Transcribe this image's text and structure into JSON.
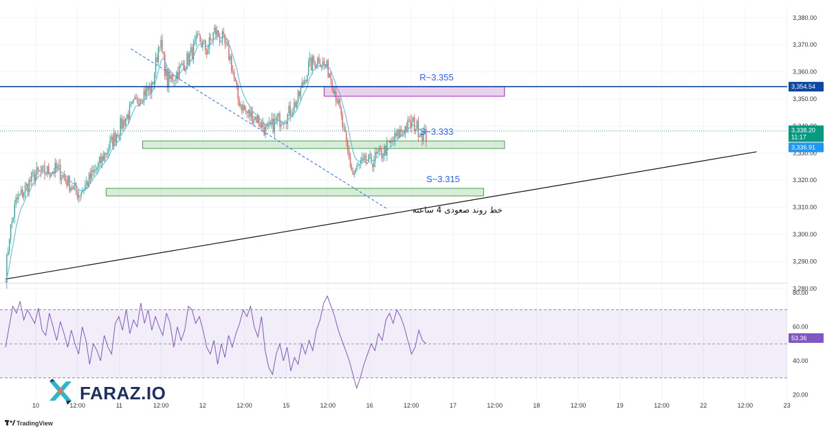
{
  "chart_data": [
    {
      "type": "candlestick",
      "instrument": "XAUUSD",
      "yaxis": {
        "range": [
          3283,
          3384
        ],
        "tick_labels": [
          "3,380.00",
          "3,370.00",
          "3,360.00",
          "3,350.00",
          "3,340.00",
          "3,330.00",
          "3,320.00",
          "3,310.00",
          "3,300.00",
          "3,290.00",
          "3,280.00"
        ],
        "ticks": [
          3380,
          3370,
          3360,
          3350,
          3340,
          3330,
          3320,
          3310,
          3300,
          3290,
          3280
        ]
      },
      "xaxis": {
        "tick_labels": [
          "10",
          "12:00",
          "11",
          "12:00",
          "12",
          "12:00",
          "15",
          "12:00",
          "16",
          "12:00",
          "17",
          "12:00",
          "18",
          "12:00",
          "19",
          "12:00",
          "22",
          "12:00",
          "23"
        ]
      },
      "anchors": [
        {
          "bar": 0,
          "price": 3285
        },
        {
          "bar": 3,
          "price": 3300
        },
        {
          "bar": 8,
          "price": 3312
        },
        {
          "bar": 14,
          "price": 3316
        },
        {
          "bar": 22,
          "price": 3322
        },
        {
          "bar": 30,
          "price": 3323
        },
        {
          "bar": 40,
          "price": 3324
        },
        {
          "bar": 50,
          "price": 3318
        },
        {
          "bar": 56,
          "price": 3315
        },
        {
          "bar": 64,
          "price": 3320
        },
        {
          "bar": 72,
          "price": 3326
        },
        {
          "bar": 80,
          "price": 3333
        },
        {
          "bar": 88,
          "price": 3340
        },
        {
          "bar": 96,
          "price": 3346
        },
        {
          "bar": 104,
          "price": 3352
        },
        {
          "bar": 112,
          "price": 3354
        },
        {
          "bar": 118,
          "price": 3372
        },
        {
          "bar": 124,
          "price": 3356
        },
        {
          "bar": 132,
          "price": 3360
        },
        {
          "bar": 140,
          "price": 3365
        },
        {
          "bar": 148,
          "price": 3372
        },
        {
          "bar": 154,
          "price": 3368
        },
        {
          "bar": 160,
          "price": 3375
        },
        {
          "bar": 166,
          "price": 3372
        },
        {
          "bar": 172,
          "price": 3365
        },
        {
          "bar": 178,
          "price": 3350
        },
        {
          "bar": 184,
          "price": 3345
        },
        {
          "bar": 192,
          "price": 3343
        },
        {
          "bar": 200,
          "price": 3338
        },
        {
          "bar": 208,
          "price": 3342
        },
        {
          "bar": 216,
          "price": 3344
        },
        {
          "bar": 224,
          "price": 3350
        },
        {
          "bar": 232,
          "price": 3362
        },
        {
          "bar": 240,
          "price": 3365
        },
        {
          "bar": 248,
          "price": 3360
        },
        {
          "bar": 254,
          "price": 3350
        },
        {
          "bar": 258,
          "price": 3340
        },
        {
          "bar": 262,
          "price": 3330
        },
        {
          "bar": 266,
          "price": 3322
        },
        {
          "bar": 272,
          "price": 3326
        },
        {
          "bar": 280,
          "price": 3327
        },
        {
          "bar": 288,
          "price": 3330
        },
        {
          "bar": 296,
          "price": 3334
        },
        {
          "bar": 304,
          "price": 3339
        },
        {
          "bar": 312,
          "price": 3341
        },
        {
          "bar": 318,
          "price": 3338
        },
        {
          "bar": 322,
          "price": 3336
        }
      ],
      "total_bars": 323,
      "bar_spacing_per_day": 124,
      "ema_period": 9,
      "current_price": {
        "value": 3338.2,
        "label": "3,338.20",
        "countdown": "11:17"
      },
      "levels": [
        {
          "value": 3354.54,
          "label": "3,354.54",
          "kind": "horizontal",
          "color": "#0d47a1"
        },
        {
          "value": 3336.91,
          "label": "3,336.91",
          "kind": "tag",
          "color": "#2196f3"
        }
      ],
      "zones": [
        {
          "label": "R~3.355",
          "kind": "resistance",
          "top": 3354.5,
          "bottom": 3351.0,
          "from_bar": 244,
          "to_bar": 382,
          "label_x_bar": 330
        },
        {
          "label": "S~3.333",
          "kind": "support",
          "top": 3334.5,
          "bottom": 3331.7,
          "from_bar": 105,
          "to_bar": 382,
          "label_x_bar": 330
        },
        {
          "label": "S~3.315",
          "kind": "support",
          "top": 3317.0,
          "bottom": 3314.2,
          "from_bar": 77,
          "to_bar": 366,
          "label_x_bar": 335
        }
      ],
      "trendlines": [
        {
          "name": "4h-uptrend",
          "from": {
            "bar": 0,
            "price": 3283.5
          },
          "to": {
            "bar": 575,
            "price": 3330.5
          },
          "color": "#111111",
          "style": "solid"
        },
        {
          "name": "falling-dashed",
          "from": {
            "bar": 96,
            "price": 3368.5
          },
          "to": {
            "bar": 292,
            "price": 3309.5
          },
          "color": "#2962ff",
          "style": "dashed"
        }
      ],
      "annotation": {
        "text": "خط روند صعودی 4 ساعته",
        "bar": 346,
        "price": 3308
      }
    },
    {
      "type": "line",
      "indicator": "RSI",
      "series": [
        {
          "values": [
            48,
            60,
            72,
            68,
            75,
            64,
            70,
            66,
            62,
            71,
            58,
            55,
            68,
            60,
            52,
            63,
            56,
            48,
            58,
            50,
            44,
            60,
            52,
            38,
            50,
            46,
            40,
            55,
            48,
            44,
            62,
            66,
            58,
            70,
            56,
            64,
            60,
            74,
            62,
            70,
            58,
            66,
            60,
            55,
            68,
            62,
            48,
            60,
            52,
            58,
            72,
            70,
            62,
            66,
            58,
            48,
            44,
            52,
            38,
            50,
            42,
            55,
            48,
            56,
            62,
            70,
            66,
            72,
            60,
            54,
            66,
            46,
            36,
            32,
            44,
            50,
            40,
            48,
            34,
            42,
            38,
            50,
            44,
            52,
            46,
            58,
            64,
            74,
            78,
            72,
            66,
            58,
            52,
            46,
            40,
            32,
            24,
            30,
            38,
            44,
            50,
            46,
            56,
            52,
            64,
            68,
            62,
            70,
            66,
            60,
            52,
            44,
            48,
            58,
            52,
            50
          ]
        }
      ],
      "yaxis": {
        "range": [
          17,
          84
        ],
        "tick_labels": [
          "80.00",
          "60.00",
          "40.00",
          "20.00"
        ],
        "ticks": [
          80,
          60,
          40,
          20
        ]
      },
      "band": [
        30,
        70
      ],
      "midline": 50,
      "current_value": {
        "value": 53.36,
        "label": "53.36"
      }
    }
  ],
  "branding": {
    "logo_text": "FARAZ.IO",
    "tradingview_text": "TradingView"
  },
  "colors": {
    "up": "#26a69a",
    "down": "#ef5350",
    "ema": "#4cb6e8",
    "rsi": "#7e57c2",
    "support_fill": "#c8e6c9",
    "support_stroke": "#43a047",
    "resistance_fill": "#e1bee7",
    "resistance_stroke": "#9c27b0",
    "current_tag": "#089981"
  }
}
